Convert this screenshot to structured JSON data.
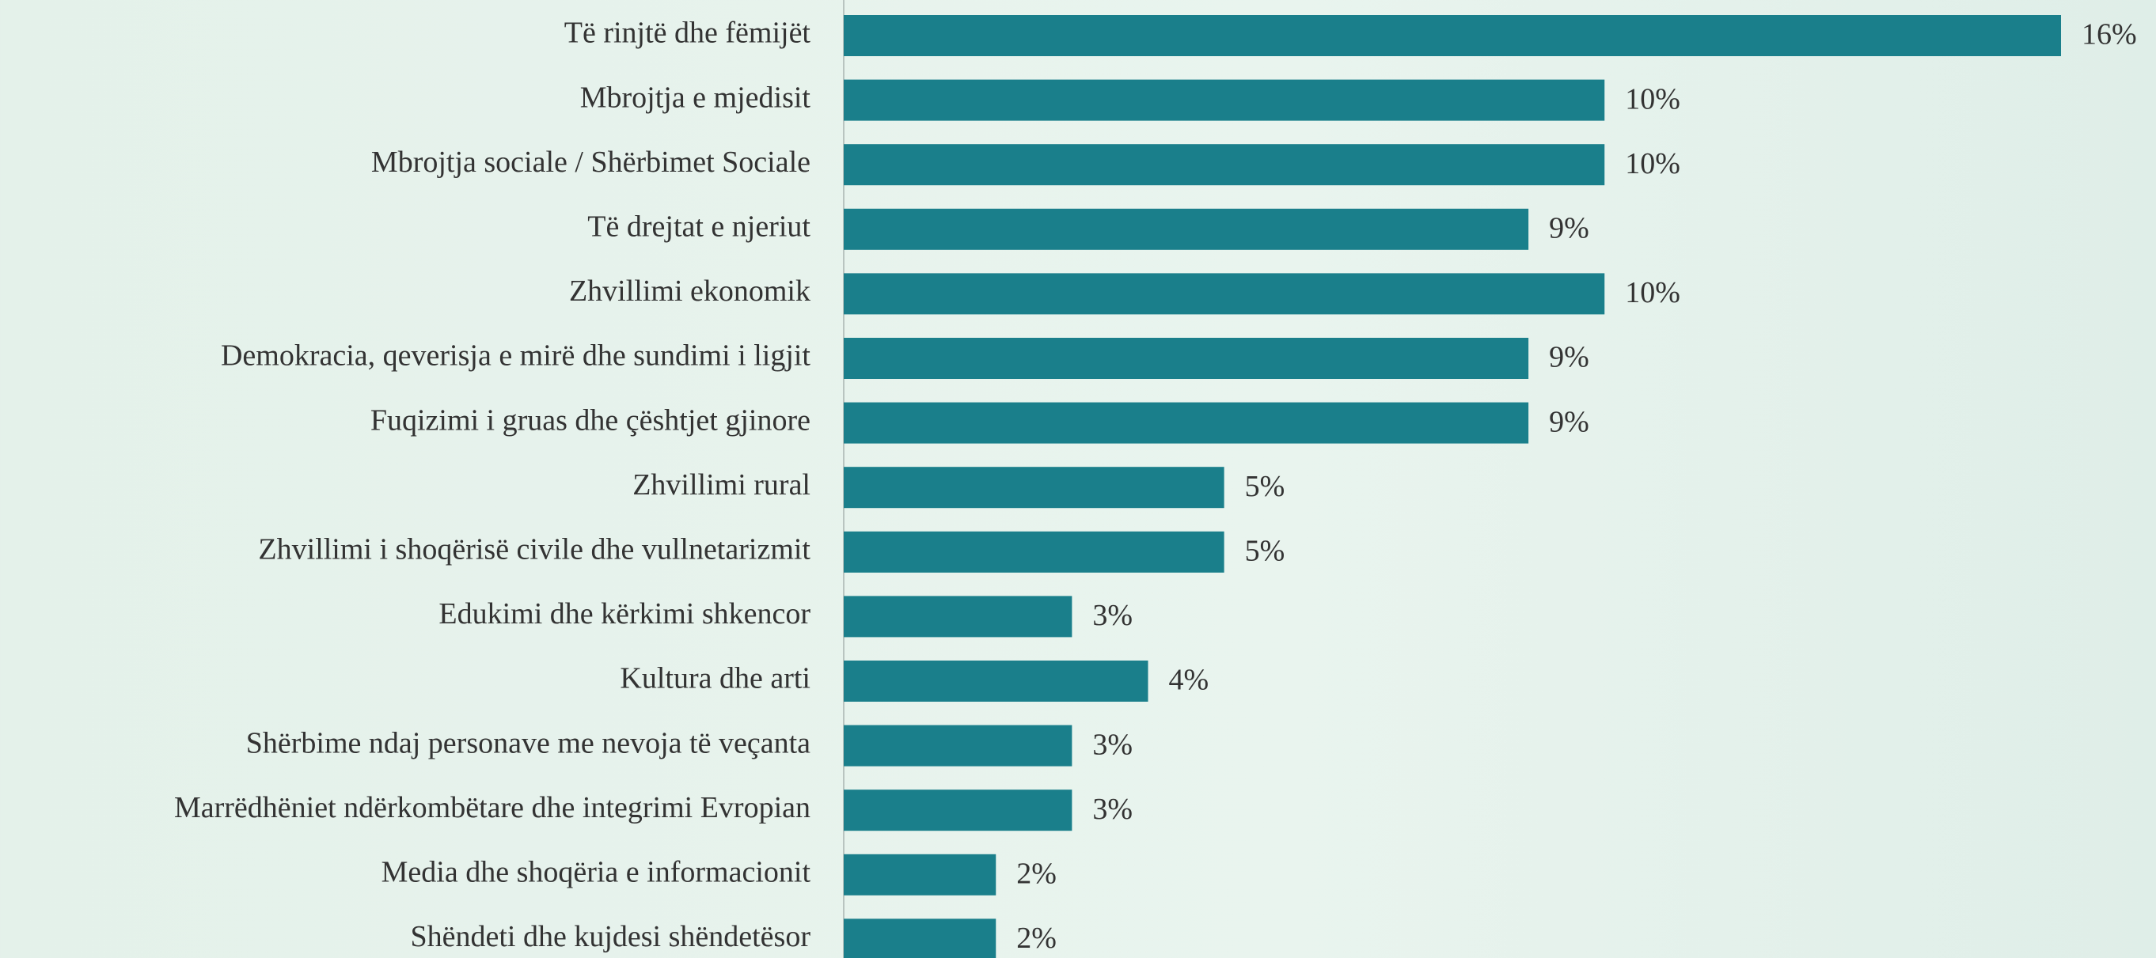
{
  "chart_data": {
    "type": "bar",
    "orientation": "horizontal",
    "color": "#1a7f8b",
    "categories": [
      "Të rinjtë dhe fëmijët",
      "Mbrojtja e mjedisit",
      "Mbrojtja sociale / Shërbimet Sociale",
      "Të drejtat e njeriut",
      "Zhvillimi ekonomik",
      "Demokracia, qeverisja e mirë dhe sundimi i ligjit",
      "Fuqizimi i gruas dhe çështjet gjinore",
      "Zhvillimi rural",
      "Zhvillimi i shoqërisë civile dhe vullnetarizmit",
      "Edukimi dhe kërkimi shkencor",
      "Kultura dhe arti",
      "Shërbime ndaj personave me nevoja të veçanta",
      "Marrëdhëniet ndërkombëtare dhe integrimi Evropian",
      "Media dhe shoqëria e informacionit",
      "Shëndeti dhe kujdesi shëndetësor"
    ],
    "values": [
      16,
      10,
      10,
      9,
      10,
      9,
      9,
      5,
      5,
      3,
      4,
      3,
      3,
      2,
      2
    ],
    "value_labels": [
      "16%",
      "10%",
      "10%",
      "9%",
      "10%",
      "9%",
      "9%",
      "5%",
      "5%",
      "3%",
      "4%",
      "3%",
      "3%",
      "2%",
      "2%"
    ]
  }
}
